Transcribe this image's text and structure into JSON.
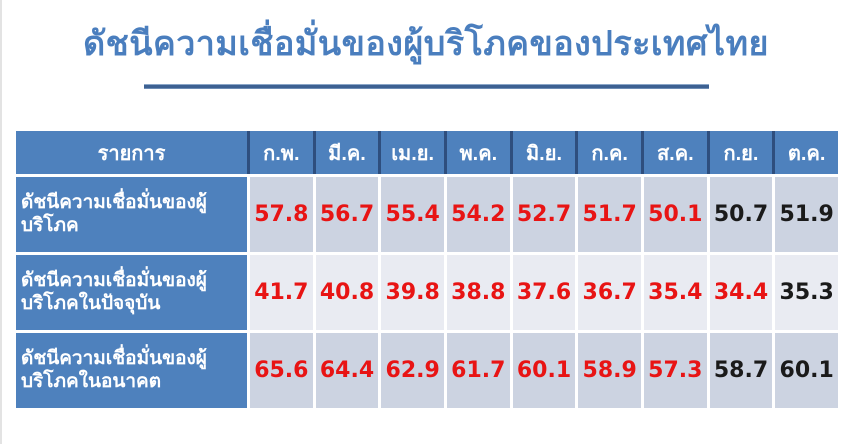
{
  "page": {
    "title": "ดัชนีความเชื่อมั่นของผู้บริโภคของประเทศไทย"
  },
  "colors": {
    "title_blue": "#4a7ebe",
    "underline_blue": "#3d6192",
    "header_blue": "#4e81bd",
    "label_column_blue": "#4e81bd",
    "band_dark": "#ccd3e1",
    "band_light": "#e9ebf2",
    "value_red": "#e81414",
    "value_black": "#1a1a1a",
    "header_separator_navy": "#2e4e7e",
    "cell_border_white": "#ffffff"
  },
  "table": {
    "header": {
      "item_label": "รายการ",
      "months": [
        "ก.พ.",
        "มี.ค.",
        "เม.ย.",
        "พ.ค.",
        "มิ.ย.",
        "ก.ค.",
        "ส.ค.",
        "ก.ย.",
        "ต.ค."
      ]
    },
    "rows": [
      {
        "label": "ดัชนีความเชื่อมั่นของผู้บริโภค",
        "values": [
          "57.8",
          "56.7",
          "55.4",
          "54.2",
          "52.7",
          "51.7",
          "50.1",
          "50.7",
          "51.9"
        ],
        "value_colors": [
          "red",
          "red",
          "red",
          "red",
          "red",
          "red",
          "red",
          "black",
          "black"
        ]
      },
      {
        "label": "ดัชนีความเชื่อมั่นของผู้บริโภคในปัจจุบัน",
        "values": [
          "41.7",
          "40.8",
          "39.8",
          "38.8",
          "37.6",
          "36.7",
          "35.4",
          "34.4",
          "35.3"
        ],
        "value_colors": [
          "red",
          "red",
          "red",
          "red",
          "red",
          "red",
          "red",
          "red",
          "black"
        ]
      },
      {
        "label": "ดัชนีความเชื่อมั่นของผู้บริโภคในอนาคต",
        "values": [
          "65.6",
          "64.4",
          "62.9",
          "61.7",
          "60.1",
          "58.9",
          "57.3",
          "58.7",
          "60.1"
        ],
        "value_colors": [
          "red",
          "red",
          "red",
          "red",
          "red",
          "red",
          "red",
          "black",
          "black"
        ]
      }
    ]
  },
  "chart_data": {
    "type": "table",
    "title": "ดัชนีความเชื่อมั่นของผู้บริโภคของประเทศไทย",
    "categories": [
      "ก.พ.",
      "มี.ค.",
      "เม.ย.",
      "พ.ค.",
      "มิ.ย.",
      "ก.ค.",
      "ส.ค.",
      "ก.ย.",
      "ต.ค."
    ],
    "series": [
      {
        "name": "ดัชนีความเชื่อมั่นของผู้บริโภค",
        "values": [
          57.8,
          56.7,
          55.4,
          54.2,
          52.7,
          51.7,
          50.1,
          50.7,
          51.9
        ]
      },
      {
        "name": "ดัชนีความเชื่อมั่นของผู้บริโภคในปัจจุบัน",
        "values": [
          41.7,
          40.8,
          39.8,
          38.8,
          37.6,
          36.7,
          35.4,
          34.4,
          35.3
        ]
      },
      {
        "name": "ดัชนีความเชื่อมั่นของผู้บริโภคในอนาคต",
        "values": [
          65.6,
          64.4,
          62.9,
          61.7,
          60.1,
          58.9,
          57.3,
          58.7,
          60.1
        ]
      }
    ],
    "notes": "Red values indicate months highlighted in red; ก.ย. and ต.ค. values shown in black (except ปัจจุบัน row where only ต.ค. is black)."
  }
}
